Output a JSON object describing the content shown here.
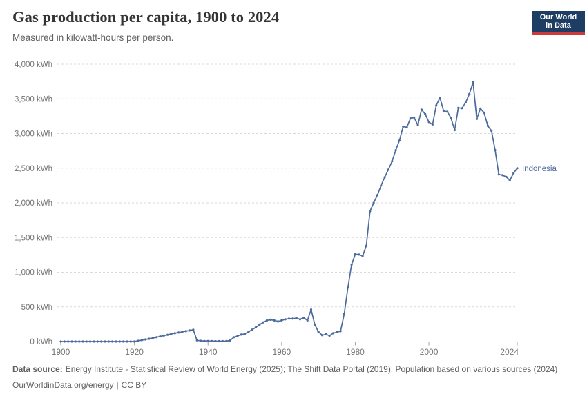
{
  "header": {
    "title": "Gas production per capita, 1900 to 2024",
    "subtitle": "Measured in kilowatt-hours per person."
  },
  "logo": {
    "line1": "Our World",
    "line2": "in Data",
    "bg_color": "#1d3d63",
    "accent_color": "#cc3b3b"
  },
  "chart_data": {
    "type": "line",
    "title": "Gas production per capita, 1900 to 2024",
    "unit": "kWh",
    "grid": "horizontal dashed",
    "legend_position": "end-of-line label",
    "x_range": [
      1900,
      2024
    ],
    "x_step": 1,
    "ylim": [
      0,
      4000
    ],
    "yticks": [
      {
        "value": 0,
        "label": "0 kWh"
      },
      {
        "value": 500,
        "label": "500 kWh"
      },
      {
        "value": 1000,
        "label": "1,000 kWh"
      },
      {
        "value": 1500,
        "label": "1,500 kWh"
      },
      {
        "value": 2000,
        "label": "2,000 kWh"
      },
      {
        "value": 2500,
        "label": "2,500 kWh"
      },
      {
        "value": 3000,
        "label": "3,000 kWh"
      },
      {
        "value": 3500,
        "label": "3,500 kWh"
      },
      {
        "value": 4000,
        "label": "4,000 kWh"
      }
    ],
    "xticks": [
      {
        "value": 1900,
        "label": "1900"
      },
      {
        "value": 1920,
        "label": "1920"
      },
      {
        "value": 1940,
        "label": "1940"
      },
      {
        "value": 1960,
        "label": "1960"
      },
      {
        "value": 1980,
        "label": "1980"
      },
      {
        "value": 2000,
        "label": "2000"
      },
      {
        "value": 2024,
        "label": "2024"
      }
    ],
    "colors": {
      "line": "#4c6a9c",
      "grid": "#d9d9d9",
      "axis": "#a3a3a3",
      "tick_text": "#737373"
    },
    "series": [
      {
        "name": "Indonesia",
        "color": "#4c6a9c",
        "values": [
          0,
          0,
          0,
          0,
          0,
          0,
          0,
          0,
          0,
          0,
          0,
          0,
          0,
          0,
          0,
          0,
          0,
          0,
          0,
          0,
          0,
          10,
          20,
          30,
          40,
          50,
          62,
          74,
          86,
          98,
          110,
          120,
          130,
          140,
          150,
          160,
          170,
          18,
          10,
          8,
          8,
          6,
          5,
          5,
          5,
          6,
          15,
          62,
          80,
          100,
          112,
          140,
          172,
          205,
          245,
          277,
          304,
          314,
          304,
          290,
          304,
          320,
          330,
          330,
          337,
          320,
          343,
          304,
          462,
          245,
          140,
          92,
          105,
          85,
          120,
          135,
          150,
          400,
          780,
          1110,
          1260,
          1255,
          1235,
          1380,
          1880,
          2000,
          2110,
          2250,
          2370,
          2480,
          2600,
          2760,
          2900,
          3100,
          3090,
          3220,
          3230,
          3120,
          3345,
          3280,
          3165,
          3130,
          3405,
          3515,
          3325,
          3315,
          3225,
          3050,
          3370,
          3365,
          3450,
          3570,
          3740,
          3210,
          3360,
          3300,
          3110,
          3040,
          2760,
          2410,
          2400,
          2375,
          2325,
          2430,
          2500
        ]
      }
    ]
  },
  "footer": {
    "source_label": "Data source:",
    "source_text": "Energy Institute - Statistical Review of World Energy (2025); The Shift Data Portal (2019); Population based on various sources (2024)",
    "license": {
      "url": "OurWorldinData.org/energy",
      "separator": "|",
      "cc": "CC BY"
    }
  }
}
